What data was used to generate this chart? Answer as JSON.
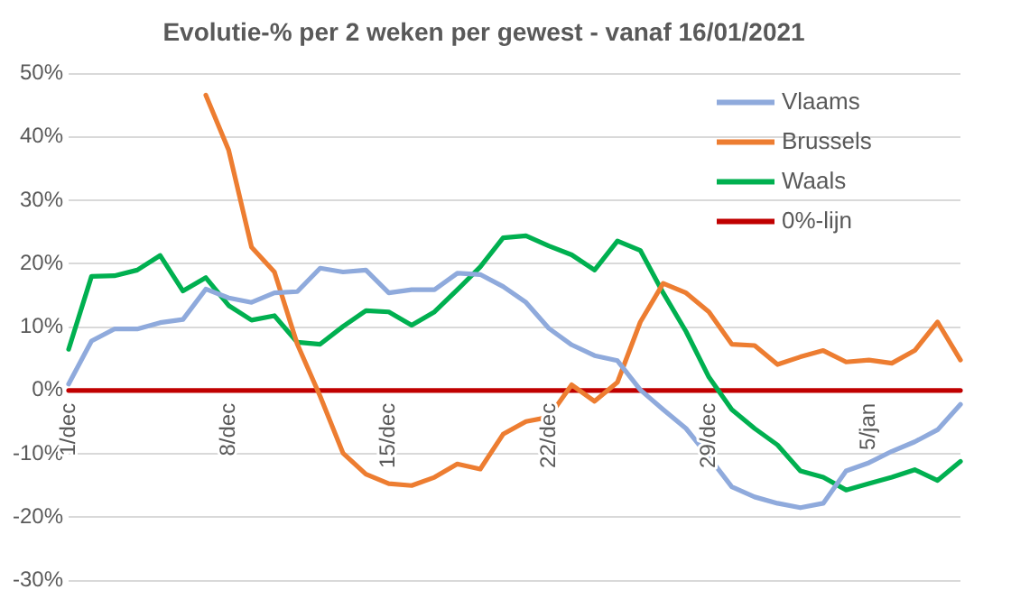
{
  "chart_data": {
    "type": "line",
    "title": "Evolutie-% per 2 weken per gewest - vanaf 16/01/2021",
    "categories": [
      "1/dec",
      null,
      null,
      null,
      null,
      null,
      null,
      "8/dec",
      null,
      null,
      null,
      null,
      null,
      null,
      "15/dec",
      null,
      null,
      null,
      null,
      null,
      null,
      "22/dec",
      null,
      null,
      null,
      null,
      null,
      null,
      "29/dec",
      null,
      null,
      null,
      null,
      null,
      null,
      "5/jan",
      null,
      null,
      null,
      null
    ],
    "series": [
      {
        "name": "Vlaams",
        "color": "#8faadc",
        "values": [
          1,
          7.8,
          9.7,
          9.7,
          10.7,
          11.2,
          16,
          14.6,
          13.9,
          15.4,
          15.6,
          19.3,
          18.7,
          19,
          15.4,
          15.9,
          15.9,
          18.5,
          18.3,
          16.4,
          13.9,
          9.8,
          7.2,
          5.5,
          4.7,
          0.1,
          -3,
          -6,
          -10.5,
          -15.2,
          -16.8,
          -17.8,
          -18.5,
          -17.8,
          -12.7,
          -11.4,
          -9.6,
          -8.1,
          -6.2,
          -2.2
        ]
      },
      {
        "name": "Brussels",
        "color": "#ed7d31",
        "values": [
          null,
          null,
          null,
          null,
          null,
          null,
          46.6,
          37.9,
          22.6,
          18.7,
          7.3,
          -0.9,
          -9.9,
          -13.2,
          -14.7,
          -15,
          -13.7,
          -11.6,
          -12.4,
          -6.9,
          -4.9,
          -4.2,
          0.9,
          -1.7,
          1.3,
          10.8,
          16.9,
          15.4,
          12.4,
          7.3,
          7.1,
          4.1,
          5.3,
          6.3,
          4.5,
          4.8,
          4.3,
          6.3,
          10.8,
          4.8
        ]
      },
      {
        "name": "Waals",
        "color": "#00b050",
        "values": [
          6.5,
          18,
          18.1,
          19,
          21.3,
          15.7,
          17.8,
          13.4,
          11.1,
          11.8,
          7.6,
          7.3,
          10.1,
          12.6,
          12.4,
          10.3,
          12.4,
          15.9,
          19.5,
          24.1,
          24.4,
          22.8,
          21.4,
          19,
          23.6,
          22.1,
          15.4,
          9.3,
          2.1,
          -3,
          -6,
          -8.6,
          -12.7,
          -13.7,
          -15.7,
          -14.7,
          -13.7,
          -12.5,
          -14.2,
          -11.2
        ]
      },
      {
        "name": "0%-lijn",
        "color": "#c00000",
        "values": [
          0,
          0,
          0,
          0,
          0,
          0,
          0,
          0,
          0,
          0,
          0,
          0,
          0,
          0,
          0,
          0,
          0,
          0,
          0,
          0,
          0,
          0,
          0,
          0,
          0,
          0,
          0,
          0,
          0,
          0,
          0,
          0,
          0,
          0,
          0,
          0,
          0,
          0,
          0,
          0
        ]
      }
    ],
    "ylim": [
      -30,
      50
    ],
    "yticks": [
      {
        "value": -30,
        "label": "-30%"
      },
      {
        "value": -20,
        "label": "-20%"
      },
      {
        "value": -10,
        "label": "-10%"
      },
      {
        "value": 0,
        "label": "0%"
      },
      {
        "value": 10,
        "label": "10%"
      },
      {
        "value": 20,
        "label": "20%"
      },
      {
        "value": 30,
        "label": "30%"
      },
      {
        "value": 40,
        "label": "40%"
      },
      {
        "value": 50,
        "label": "50%"
      }
    ],
    "grid": "y",
    "legend": "top right",
    "marker": "none",
    "line_style": "solid"
  }
}
